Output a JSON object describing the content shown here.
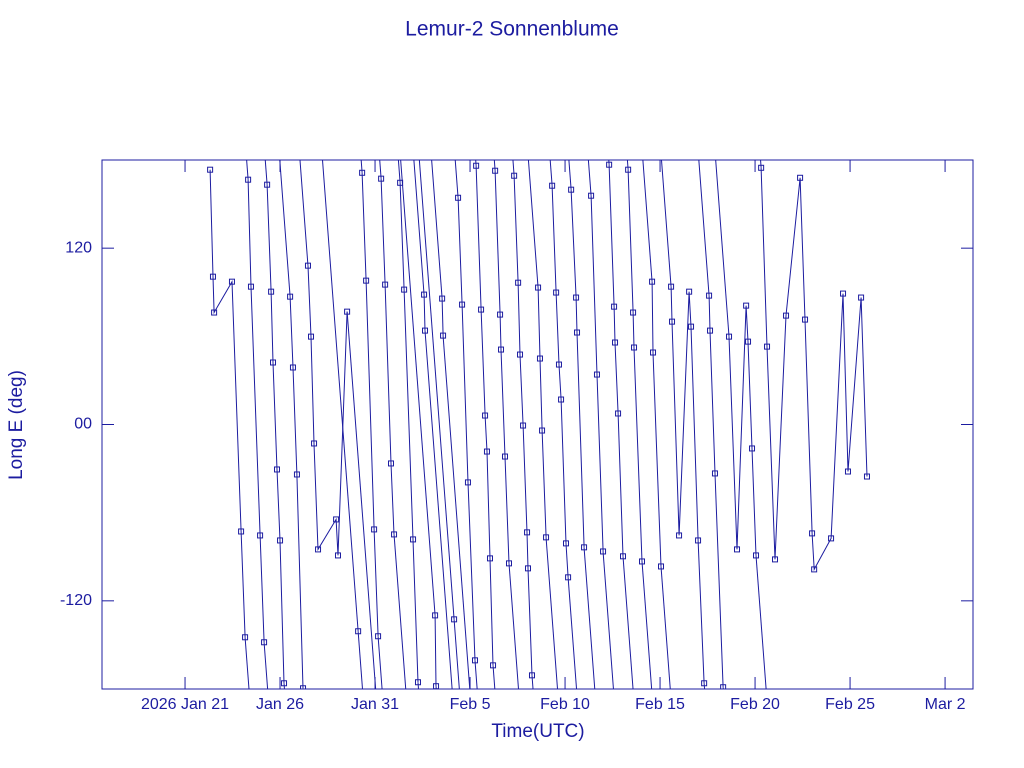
{
  "chart_data": {
    "type": "line",
    "title": "Lemur-2 Sonnenblume",
    "xlabel": "Time(UTC)",
    "ylabel": "Long E (deg)",
    "xlim": [
      16.63,
      62.47
    ],
    "ylim": [
      -180,
      180
    ],
    "xticks": [
      {
        "value": 21,
        "label": "2026 Jan 21"
      },
      {
        "value": 26,
        "label": "Jan 26"
      },
      {
        "value": 31,
        "label": "Jan 31"
      },
      {
        "value": 36,
        "label": "Feb 5"
      },
      {
        "value": 41,
        "label": "Feb 10"
      },
      {
        "value": 46,
        "label": "Feb 15"
      },
      {
        "value": 51,
        "label": "Feb 20"
      },
      {
        "value": 56,
        "label": "Feb 25"
      },
      {
        "value": 61,
        "label": "Mar 2"
      }
    ],
    "yticks": [
      120,
      {
        "value": 0,
        "label": "00"
      },
      -120
    ],
    "color": "#1c1ca0",
    "x": [
      22.32,
      22.47,
      22.53,
      23.47,
      23.95,
      24.16,
      null,
      24.32,
      24.47,
      24.95,
      25.16,
      null,
      25.32,
      25.53,
      25.63,
      25.84,
      26.0,
      26.21,
      null,
      26.53,
      26.68,
      26.89,
      27.21,
      null,
      27.47,
      27.63,
      27.79,
      28.0,
      28.95,
      29.05,
      29.53,
      null,
      30.11,
      null,
      30.32,
      30.53,
      30.95,
      31.16,
      null,
      31.32,
      31.53,
      31.84,
      32.0,
      null,
      32.32,
      32.53,
      33.0,
      33.26,
      null,
      33.58,
      33.63,
      null,
      34.16,
      34.21,
      null,
      34.53,
      34.58,
      null,
      35.16,
      null,
      35.37,
      35.58,
      35.89,
      36.26,
      null,
      36.32,
      36.58,
      36.79,
      36.89,
      37.05,
      37.21,
      null,
      37.32,
      37.58,
      37.63,
      37.84,
      38.05,
      null,
      38.32,
      38.53,
      38.63,
      38.79,
      39.0,
      39.05,
      39.26,
      null,
      39.58,
      39.68,
      39.79,
      40.0,
      null,
      40.32,
      40.53,
      40.68,
      40.79,
      41.05,
      41.16,
      null,
      41.32,
      41.58,
      41.63,
      42.0,
      null,
      42.37,
      42.68,
      43.0,
      null,
      43.32,
      43.58,
      43.63,
      43.79,
      44.05,
      null,
      44.32,
      44.58,
      44.63,
      45.05,
      null,
      45.58,
      45.63,
      46.05,
      null,
      46.58,
      46.63,
      47.0,
      47.53,
      47.63,
      48.0,
      48.32,
      null,
      48.58,
      48.63,
      48.89,
      49.32,
      null,
      49.63,
      50.05,
      50.53,
      50.63,
      50.84,
      51.05,
      null,
      51.32,
      51.63,
      52.05,
      52.63,
      53.37,
      53.63,
      54.0,
      54.11,
      55.0,
      55.63,
      55.89,
      56.58,
      56.89
    ],
    "values": [
      173.4,
      100.6,
      76.2,
      97.2,
      -72.8,
      -144.8,
      null,
      166.6,
      93.8,
      -75.5,
      -148.2,
      null,
      163.2,
      90.4,
      42.2,
      -30.6,
      -78.9,
      -176.1,
      null,
      87.0,
      38.8,
      -34.0,
      -179.5,
      null,
      108.1,
      59.8,
      -12.9,
      -85.0,
      -64.6,
      -89.1,
      76.8,
      null,
      -140.7,
      null,
      171.3,
      97.9,
      -71.4,
      -144.1,
      null,
      167.3,
      95.2,
      -26.5,
      -74.8,
      null,
      164.5,
      91.8,
      -78.2,
      -175.4,
      null,
      88.4,
      63.9,
      null,
      -129.9,
      -178.1,
      null,
      85.7,
      60.5,
      null,
      -132.6,
      null,
      154.3,
      81.6,
      -39.4,
      -160.5,
      null,
      176.1,
      78.2,
      6.1,
      -18.4,
      -91.1,
      -163.9,
      null,
      172.7,
      74.8,
      51.0,
      -21.8,
      -94.5,
      null,
      169.3,
      96.5,
      47.6,
      -0.7,
      -73.4,
      -97.9,
      -170.7,
      null,
      93.2,
      44.9,
      -4.1,
      -76.8,
      null,
      162.5,
      89.8,
      40.8,
      17.0,
      -80.9,
      -104.0,
      null,
      159.8,
      86.4,
      62.6,
      -83.6,
      null,
      155.7,
      34.0,
      -86.4,
      null,
      176.8,
      80.2,
      55.8,
      7.5,
      -89.7,
      null,
      173.4,
      76.2,
      52.4,
      -93.2,
      null,
      97.2,
      49.0,
      -96.6,
      null,
      93.8,
      70.0,
      -75.5,
      90.4,
      66.6,
      -78.9,
      -176.1,
      null,
      87.7,
      63.9,
      -33.3,
      -178.8,
      null,
      59.8,
      -85.0,
      80.9,
      56.4,
      -16.3,
      -89.1,
      null,
      174.7,
      53.0,
      -91.8,
      74.1,
      167.9,
      71.4,
      -74.1,
      -98.6,
      -77.5,
      89.1,
      -32.0,
      86.4,
      -35.4
    ]
  }
}
